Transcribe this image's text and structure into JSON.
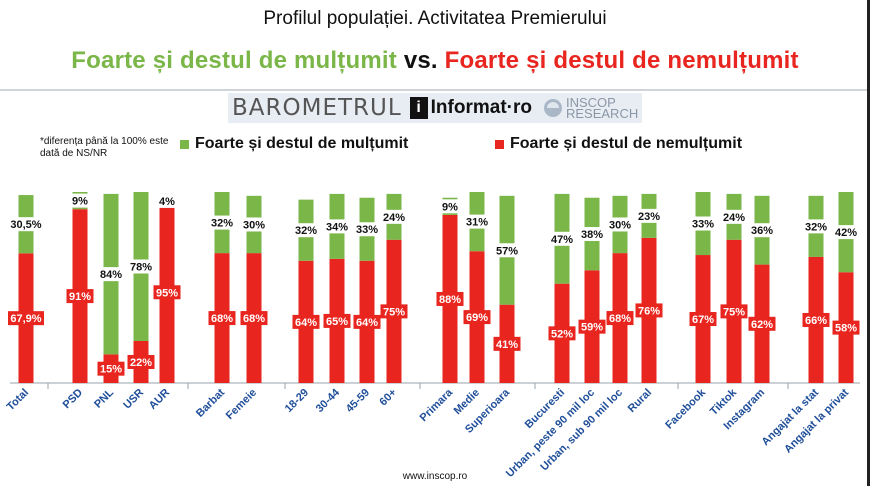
{
  "header": {
    "title": "Profilul populației. Activitatea Premierului",
    "headline_pos": "Foarte și destul de mulțumit",
    "headline_vs": "vs.",
    "headline_neg": "Foarte și destul de nemulțumit"
  },
  "brand": {
    "barometer": "BAROMETRUL",
    "informat_icon": "i",
    "informat": "Informat·ro",
    "inscop_line1": "INSCOP",
    "inscop_line2": "RESEARCH"
  },
  "note": "*diferența până la 100% este dată de NS/NR",
  "footer": "www.inscop.ro",
  "colors": {
    "pos": "#7ab648",
    "neg": "#e8261f",
    "axis": "#9aa3ad",
    "tick_text": "#1f4e9a"
  },
  "chart_data": {
    "type": "bar",
    "stacked": true,
    "ylim": [
      0,
      100
    ],
    "legend": "top",
    "categories": [
      "Total",
      "PSD",
      "PNL",
      "USR",
      "AUR",
      "Barbat",
      "Femeie",
      "18-29",
      "30-44",
      "45-59",
      "60+",
      "Primara",
      "Medie",
      "Superioara",
      "Bucuresti",
      "Urban, peste 90 mil loc",
      "Urban, sub 90 mil loc",
      "Rural",
      "Facebook",
      "Tiktok",
      "Instagram",
      "Angajat la stat",
      "Angajat la privat"
    ],
    "series": [
      {
        "name": "Foarte și destul de nemulțumit",
        "values": [
          67.9,
          91,
          15,
          22,
          95,
          68,
          68,
          64,
          65,
          64,
          75,
          88,
          69,
          41,
          52,
          59,
          68,
          76,
          67,
          75,
          62,
          66,
          58
        ],
        "labels": [
          "67,9%",
          "91%",
          "15%",
          "22%",
          "95%",
          "68%",
          "68%",
          "64%",
          "65%",
          "64%",
          "75%",
          "88%",
          "69%",
          "41%",
          "52%",
          "59%",
          "68%",
          "76%",
          "67%",
          "75%",
          "62%",
          "66%",
          "58%"
        ]
      },
      {
        "name": "Foarte și destul de mulțumit",
        "values": [
          30.5,
          9,
          84,
          78,
          4,
          32,
          30,
          32,
          34,
          33,
          24,
          9,
          31,
          57,
          47,
          38,
          30,
          23,
          33,
          24,
          36,
          32,
          42
        ],
        "labels": [
          "30,5%",
          "9%",
          "84%",
          "78%",
          "4%",
          "32%",
          "30%",
          "32%",
          "34%",
          "33%",
          "24%",
          "9%",
          "31%",
          "57%",
          "47%",
          "38%",
          "30%",
          "23%",
          "33%",
          "24%",
          "36%",
          "32%",
          "42%"
        ]
      }
    ]
  }
}
